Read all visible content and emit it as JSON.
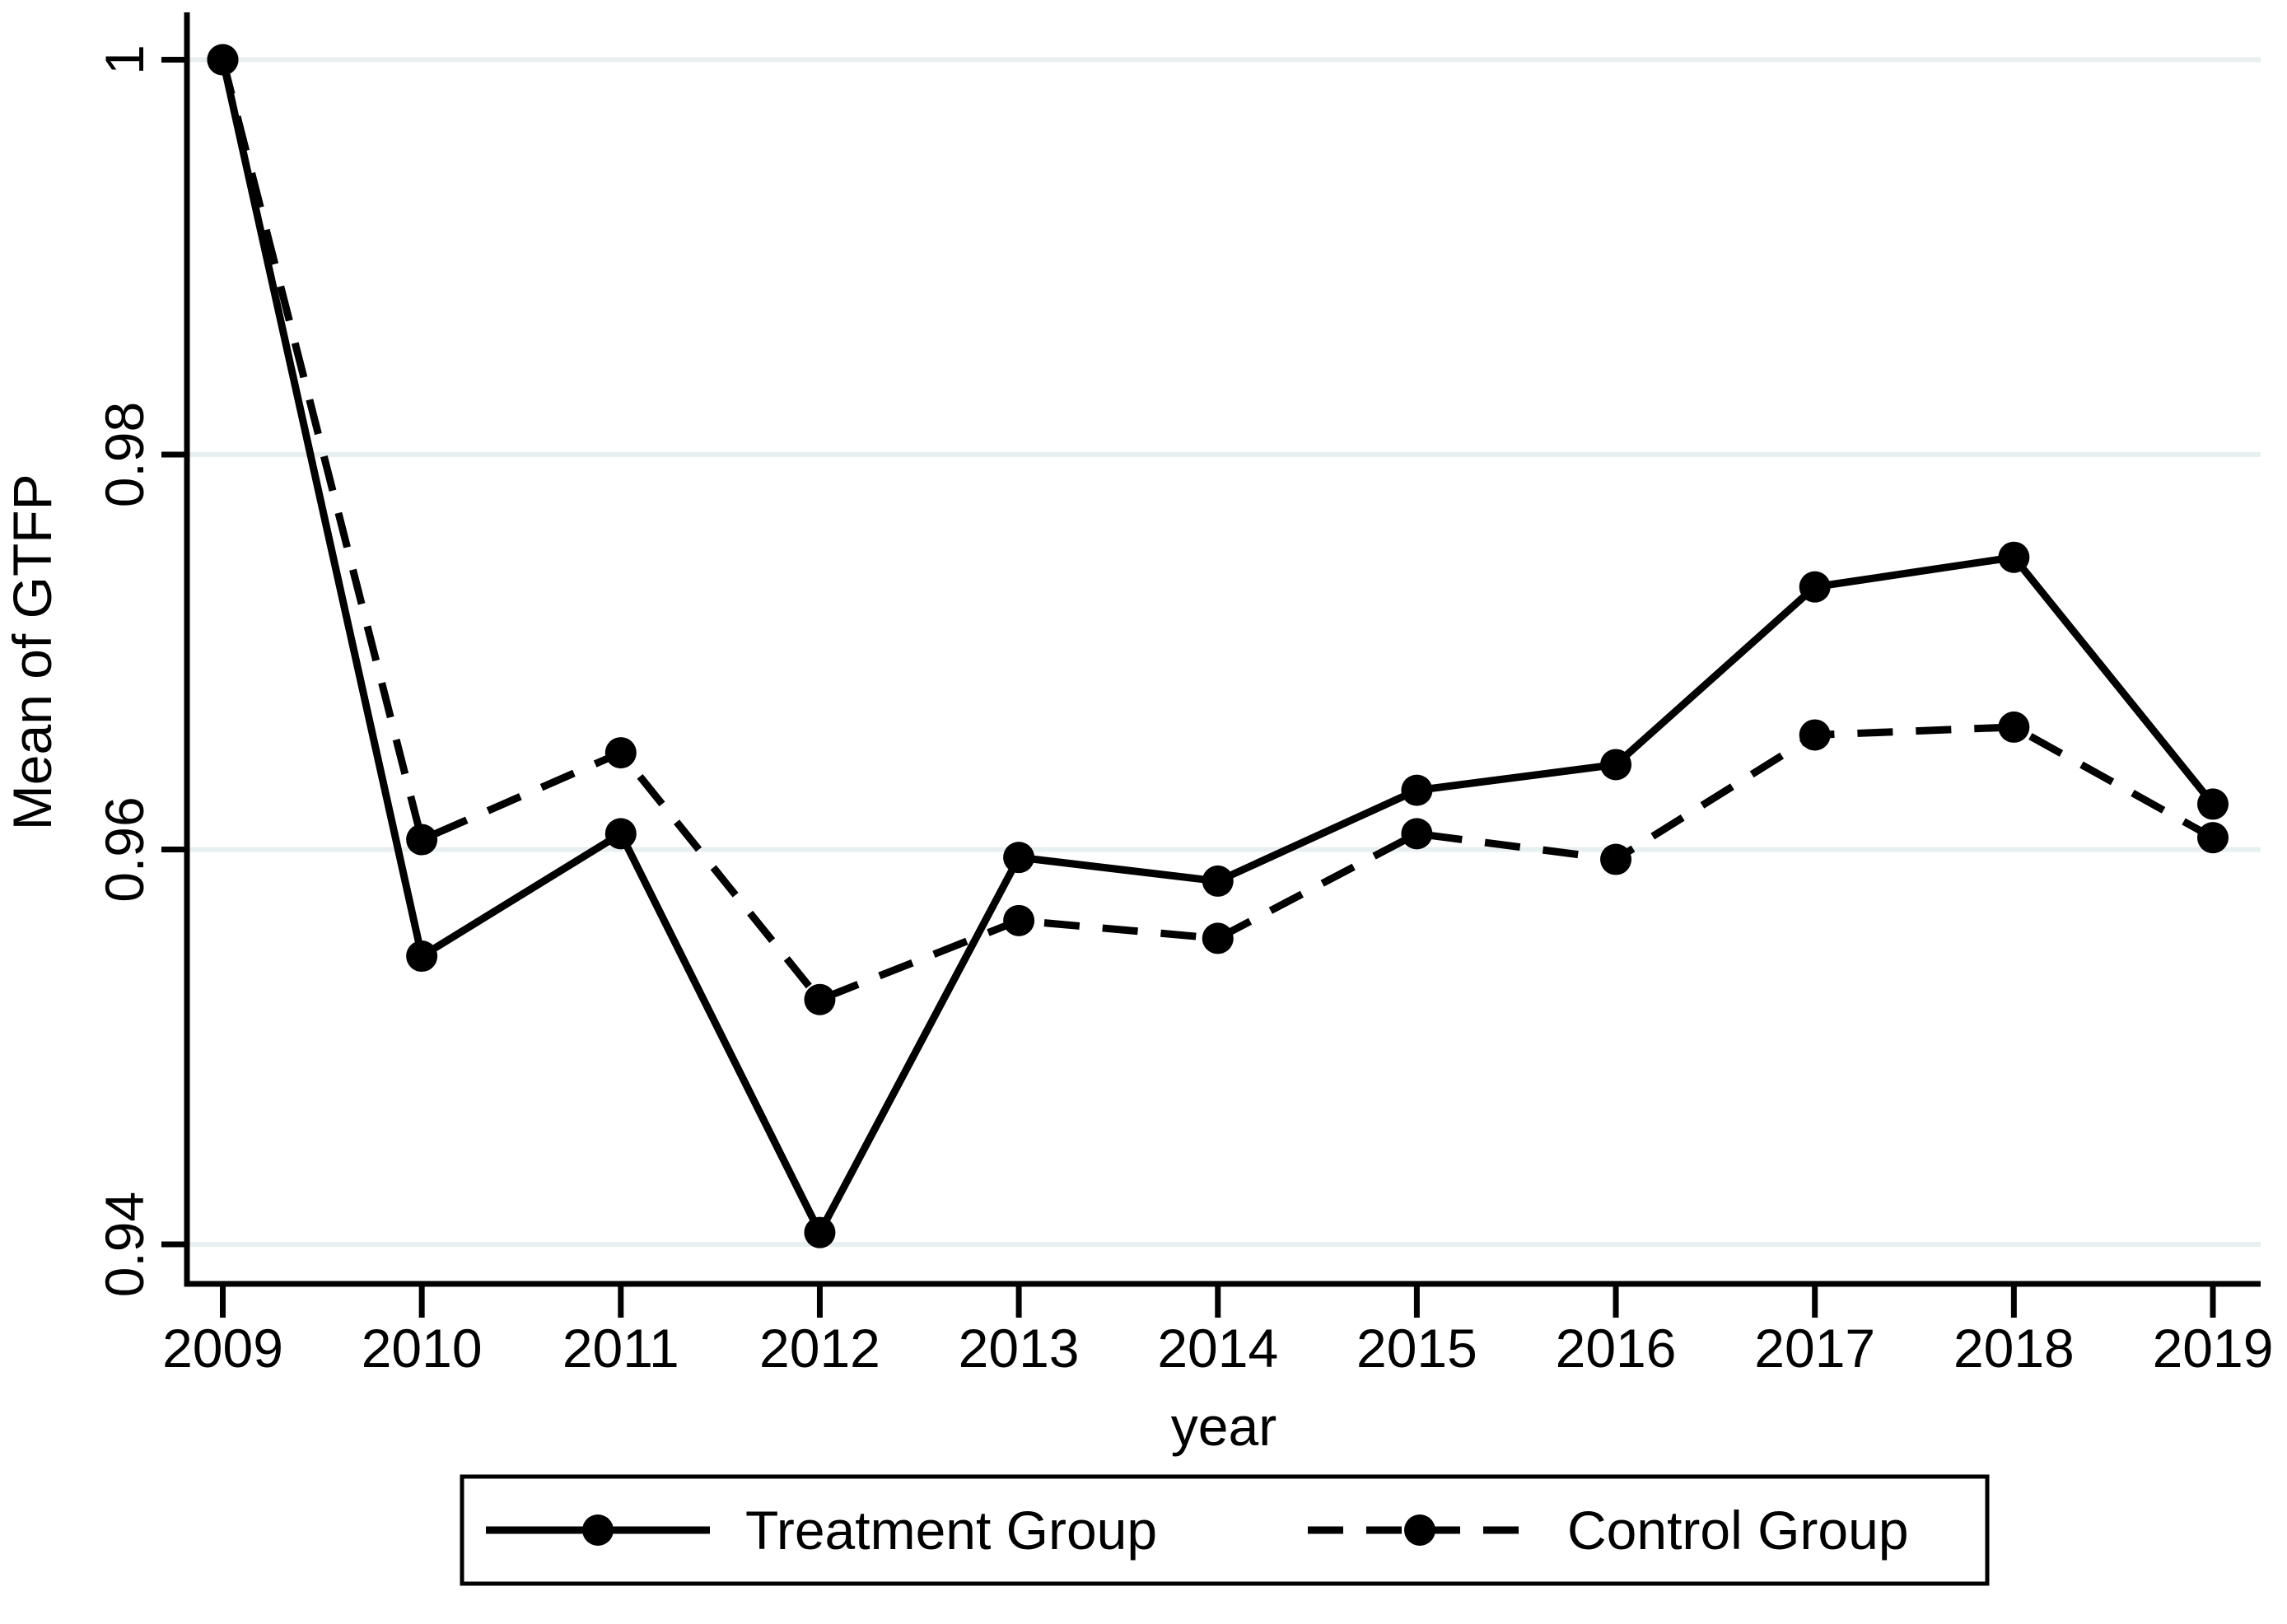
{
  "figure": {
    "background_color": "#ffffff",
    "foreground_color": "#000000",
    "gridline_color": "#e8eff1"
  },
  "chart_data": {
    "type": "line",
    "title": "",
    "xlabel": "year",
    "ylabel": "Mean of GTFP",
    "x": [
      2009,
      2010,
      2011,
      2012,
      2013,
      2014,
      2015,
      2016,
      2017,
      2018,
      2019
    ],
    "x_tick_labels": [
      "2009",
      "2010",
      "2011",
      "2012",
      "2013",
      "2014",
      "2015",
      "2016",
      "2017",
      "2018",
      "2019"
    ],
    "y_ticks": [
      1,
      0.98,
      0.96,
      0.94
    ],
    "y_tick_labels": [
      "1",
      "0.98",
      "0.96",
      "0.94"
    ],
    "xlim": [
      2008.82,
      2019.24
    ],
    "ylim": [
      0.938,
      1.0024
    ],
    "grid": "horizontal-only",
    "series": [
      {
        "name": "Treatment Group",
        "line_style": "solid",
        "marker": "filled-circle",
        "color": "#000000",
        "values": [
          1.0,
          0.9546,
          0.9608,
          0.9406,
          0.9596,
          0.9584,
          0.963,
          0.9643,
          0.9733,
          0.9748,
          0.9623
        ]
      },
      {
        "name": "Control Group",
        "line_style": "dashed",
        "marker": "filled-circle",
        "color": "#000000",
        "values": [
          1.0,
          0.9605,
          0.9649,
          0.9524,
          0.9564,
          0.9555,
          0.9608,
          0.9595,
          0.9658,
          0.9662,
          0.9606
        ]
      }
    ],
    "legend": {
      "position": "bottom",
      "border_color": "#000000",
      "background_color": "#ffffff",
      "items": [
        "Treatment Group",
        "Control Group"
      ]
    }
  }
}
